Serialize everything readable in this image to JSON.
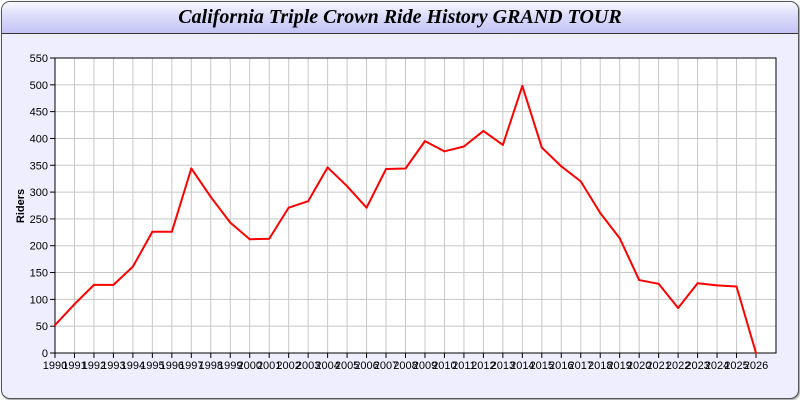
{
  "chart_data": {
    "type": "line",
    "title": "California Triple Crown Ride History GRAND TOUR",
    "xlabel": "",
    "ylabel": "Riders",
    "ylim": [
      0,
      550
    ],
    "yticks": [
      0,
      50,
      100,
      150,
      200,
      250,
      300,
      350,
      400,
      450,
      500,
      550
    ],
    "grid": true,
    "line_color": "#ff0000",
    "categories": [
      "1990",
      "1991",
      "1992",
      "1993",
      "1994",
      "1995",
      "1996",
      "1997",
      "1998",
      "1999",
      "2000",
      "2001",
      "2002",
      "2003",
      "2004",
      "2005",
      "2006",
      "2007",
      "2008",
      "2009",
      "2010",
      "2011",
      "2012",
      "2013",
      "2014",
      "2015",
      "2016",
      "2017",
      "2018",
      "2019",
      "2020",
      "2021",
      "2022",
      "2023",
      "2024",
      "2025",
      "2026"
    ],
    "values": [
      52,
      91,
      127,
      127,
      161,
      226,
      226,
      344,
      291,
      243,
      212,
      213,
      271,
      283,
      346,
      311,
      271,
      343,
      344,
      395,
      376,
      385,
      414,
      388,
      498,
      383,
      348,
      320,
      261,
      214,
      136,
      129,
      84,
      130,
      126,
      124,
      0
    ]
  }
}
